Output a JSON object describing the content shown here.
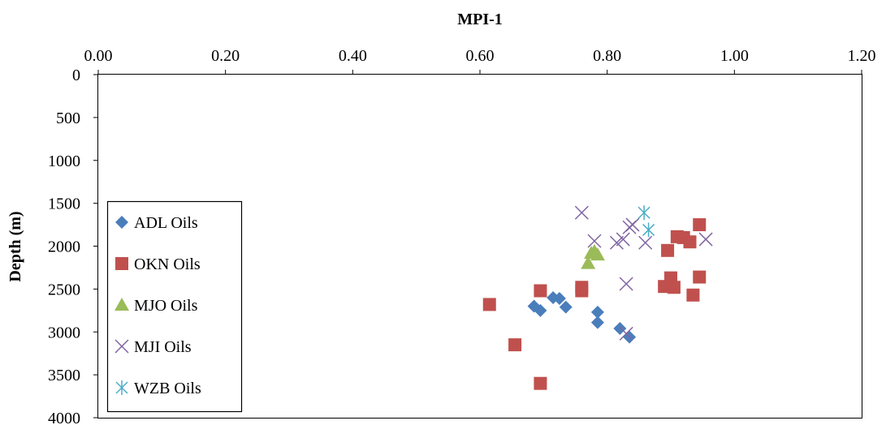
{
  "chart_data": {
    "type": "scatter",
    "title": "",
    "xlabel": "MPI-1",
    "ylabel": "Depth (m)",
    "xlim": [
      0,
      1.2
    ],
    "ylim": [
      0,
      4000
    ],
    "y_reversed": true,
    "x_axis_position": "top",
    "x_ticks": [
      "0.00",
      "0.20",
      "0.40",
      "0.60",
      "0.80",
      "1.00",
      "1.20"
    ],
    "y_ticks": [
      "0",
      "500",
      "1000",
      "1500",
      "2000",
      "2500",
      "3000",
      "3500",
      "4000"
    ],
    "legend_position": "left",
    "grid": false,
    "series": [
      {
        "name": "ADL Oils",
        "marker": "diamond",
        "color": "#4a7ebb",
        "points": [
          {
            "x": 0.685,
            "y": 2700
          },
          {
            "x": 0.695,
            "y": 2750
          },
          {
            "x": 0.715,
            "y": 2600
          },
          {
            "x": 0.725,
            "y": 2610
          },
          {
            "x": 0.735,
            "y": 2710
          },
          {
            "x": 0.785,
            "y": 2770
          },
          {
            "x": 0.785,
            "y": 2890
          },
          {
            "x": 0.82,
            "y": 2960
          },
          {
            "x": 0.835,
            "y": 3060
          }
        ]
      },
      {
        "name": "OKN Oils",
        "marker": "square",
        "color": "#c0504d",
        "points": [
          {
            "x": 0.615,
            "y": 2680
          },
          {
            "x": 0.655,
            "y": 3150
          },
          {
            "x": 0.695,
            "y": 2520
          },
          {
            "x": 0.695,
            "y": 3600
          },
          {
            "x": 0.76,
            "y": 2480
          },
          {
            "x": 0.76,
            "y": 2520
          },
          {
            "x": 0.895,
            "y": 2050
          },
          {
            "x": 0.89,
            "y": 2470
          },
          {
            "x": 0.9,
            "y": 2370
          },
          {
            "x": 0.905,
            "y": 2480
          },
          {
            "x": 0.91,
            "y": 1890
          },
          {
            "x": 0.92,
            "y": 1900
          },
          {
            "x": 0.93,
            "y": 1950
          },
          {
            "x": 0.935,
            "y": 2570
          },
          {
            "x": 0.945,
            "y": 1750
          },
          {
            "x": 0.945,
            "y": 2360
          }
        ]
      },
      {
        "name": "MJO Oils",
        "marker": "triangle",
        "color": "#9bbb59",
        "points": [
          {
            "x": 0.77,
            "y": 2200
          },
          {
            "x": 0.775,
            "y": 2080
          },
          {
            "x": 0.78,
            "y": 2060
          },
          {
            "x": 0.785,
            "y": 2100
          }
        ]
      },
      {
        "name": "MJI Oils",
        "marker": "x",
        "color": "#8064a2",
        "points": [
          {
            "x": 0.76,
            "y": 1610
          },
          {
            "x": 0.78,
            "y": 1940
          },
          {
            "x": 0.815,
            "y": 1960
          },
          {
            "x": 0.825,
            "y": 1920
          },
          {
            "x": 0.83,
            "y": 2440
          },
          {
            "x": 0.83,
            "y": 3020
          },
          {
            "x": 0.835,
            "y": 1780
          },
          {
            "x": 0.84,
            "y": 1750
          },
          {
            "x": 0.86,
            "y": 1960
          },
          {
            "x": 0.955,
            "y": 1920
          }
        ]
      },
      {
        "name": "WZB Oils",
        "marker": "star",
        "color": "#4bacc6",
        "points": [
          {
            "x": 0.858,
            "y": 1610
          },
          {
            "x": 0.865,
            "y": 1810
          }
        ]
      }
    ]
  }
}
